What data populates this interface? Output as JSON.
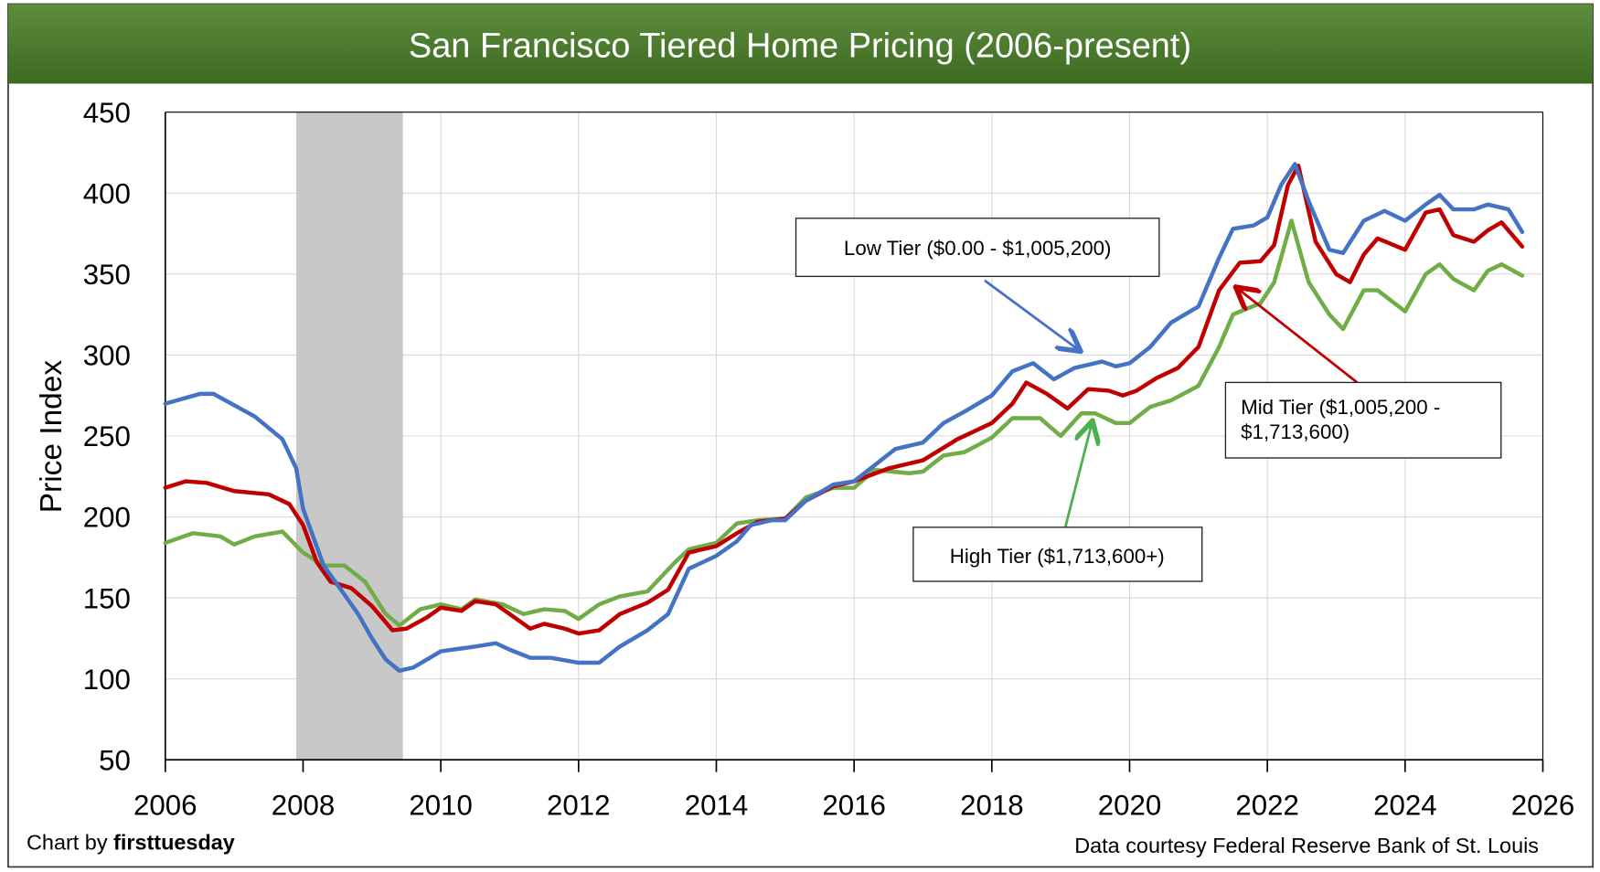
{
  "chart_data": {
    "type": "line",
    "title": "San Francisco Tiered Home Pricing (2006-present)",
    "ylabel": "Price Index",
    "xlabel": "",
    "xlim": [
      2006,
      2026
    ],
    "ylim": [
      50,
      450
    ],
    "x_ticks": [
      "2006",
      "2008",
      "2010",
      "2012",
      "2014",
      "2016",
      "2018",
      "2020",
      "2022",
      "2024",
      "2026"
    ],
    "y_ticks": [
      "450",
      "400",
      "350",
      "300",
      "250",
      "200",
      "150",
      "100",
      "50"
    ],
    "grid": true,
    "recession_shading": [
      2007.9,
      2009.45
    ],
    "series": [
      {
        "name": "Low Tier ($0.00 - $1,005,200)",
        "color": "#4472c4",
        "points": [
          [
            2006.0,
            270
          ],
          [
            2006.5,
            276
          ],
          [
            2006.7,
            276
          ],
          [
            2007.0,
            269
          ],
          [
            2007.3,
            262
          ],
          [
            2007.7,
            248
          ],
          [
            2007.9,
            230
          ],
          [
            2008.0,
            205
          ],
          [
            2008.3,
            170
          ],
          [
            2008.5,
            158
          ],
          [
            2008.8,
            140
          ],
          [
            2009.0,
            125
          ],
          [
            2009.2,
            112
          ],
          [
            2009.4,
            105
          ],
          [
            2009.6,
            107
          ],
          [
            2010.0,
            117
          ],
          [
            2010.5,
            120
          ],
          [
            2010.8,
            122
          ],
          [
            2011.0,
            118
          ],
          [
            2011.3,
            113
          ],
          [
            2011.6,
            113
          ],
          [
            2012.0,
            110
          ],
          [
            2012.3,
            110
          ],
          [
            2012.6,
            120
          ],
          [
            2013.0,
            130
          ],
          [
            2013.3,
            140
          ],
          [
            2013.6,
            168
          ],
          [
            2014.0,
            176
          ],
          [
            2014.3,
            185
          ],
          [
            2014.5,
            195
          ],
          [
            2014.8,
            198
          ],
          [
            2015.0,
            198
          ],
          [
            2015.3,
            210
          ],
          [
            2015.7,
            220
          ],
          [
            2016.0,
            222
          ],
          [
            2016.3,
            232
          ],
          [
            2016.6,
            242
          ],
          [
            2017.0,
            246
          ],
          [
            2017.3,
            258
          ],
          [
            2017.6,
            265
          ],
          [
            2018.0,
            275
          ],
          [
            2018.3,
            290
          ],
          [
            2018.6,
            295
          ],
          [
            2018.9,
            285
          ],
          [
            2019.2,
            292
          ],
          [
            2019.6,
            296
          ],
          [
            2019.8,
            293
          ],
          [
            2020.0,
            295
          ],
          [
            2020.3,
            305
          ],
          [
            2020.6,
            320
          ],
          [
            2021.0,
            330
          ],
          [
            2021.3,
            360
          ],
          [
            2021.5,
            378
          ],
          [
            2021.8,
            380
          ],
          [
            2022.0,
            385
          ],
          [
            2022.2,
            405
          ],
          [
            2022.4,
            418
          ],
          [
            2022.6,
            395
          ],
          [
            2022.9,
            365
          ],
          [
            2023.1,
            363
          ],
          [
            2023.4,
            383
          ],
          [
            2023.7,
            389
          ],
          [
            2024.0,
            383
          ],
          [
            2024.3,
            393
          ],
          [
            2024.5,
            399
          ],
          [
            2024.7,
            390
          ],
          [
            2025.0,
            390
          ],
          [
            2025.2,
            393
          ],
          [
            2025.5,
            390
          ],
          [
            2025.7,
            376
          ]
        ]
      },
      {
        "name": "Mid Tier ($1,005,200 - $1,713,600)",
        "color": "#c00000",
        "points": [
          [
            2006.0,
            218
          ],
          [
            2006.3,
            222
          ],
          [
            2006.6,
            221
          ],
          [
            2007.0,
            216
          ],
          [
            2007.5,
            214
          ],
          [
            2007.8,
            208
          ],
          [
            2008.0,
            195
          ],
          [
            2008.2,
            172
          ],
          [
            2008.4,
            160
          ],
          [
            2008.7,
            156
          ],
          [
            2009.0,
            145
          ],
          [
            2009.3,
            130
          ],
          [
            2009.5,
            131
          ],
          [
            2009.8,
            138
          ],
          [
            2010.0,
            144
          ],
          [
            2010.3,
            142
          ],
          [
            2010.5,
            148
          ],
          [
            2010.8,
            146
          ],
          [
            2011.0,
            140
          ],
          [
            2011.3,
            131
          ],
          [
            2011.5,
            134
          ],
          [
            2011.8,
            131
          ],
          [
            2012.0,
            128
          ],
          [
            2012.3,
            130
          ],
          [
            2012.6,
            140
          ],
          [
            2013.0,
            147
          ],
          [
            2013.3,
            155
          ],
          [
            2013.6,
            178
          ],
          [
            2014.0,
            182
          ],
          [
            2014.3,
            190
          ],
          [
            2014.6,
            197
          ],
          [
            2015.0,
            199
          ],
          [
            2015.3,
            210
          ],
          [
            2015.7,
            219
          ],
          [
            2016.0,
            222
          ],
          [
            2016.5,
            230
          ],
          [
            2017.0,
            235
          ],
          [
            2017.5,
            248
          ],
          [
            2018.0,
            258
          ],
          [
            2018.3,
            270
          ],
          [
            2018.5,
            283
          ],
          [
            2018.8,
            276
          ],
          [
            2019.1,
            267
          ],
          [
            2019.4,
            279
          ],
          [
            2019.7,
            278
          ],
          [
            2019.9,
            275
          ],
          [
            2020.1,
            278
          ],
          [
            2020.4,
            286
          ],
          [
            2020.7,
            292
          ],
          [
            2021.0,
            305
          ],
          [
            2021.3,
            340
          ],
          [
            2021.6,
            357
          ],
          [
            2021.9,
            358
          ],
          [
            2022.1,
            368
          ],
          [
            2022.3,
            405
          ],
          [
            2022.45,
            417
          ],
          [
            2022.7,
            370
          ],
          [
            2023.0,
            350
          ],
          [
            2023.2,
            345
          ],
          [
            2023.4,
            362
          ],
          [
            2023.6,
            372
          ],
          [
            2024.0,
            365
          ],
          [
            2024.3,
            388
          ],
          [
            2024.5,
            390
          ],
          [
            2024.7,
            374
          ],
          [
            2025.0,
            370
          ],
          [
            2025.2,
            377
          ],
          [
            2025.4,
            382
          ],
          [
            2025.7,
            367
          ]
        ]
      },
      {
        "name": "High Tier ($1,713,600+)",
        "color": "#70ad47",
        "points": [
          [
            2006.0,
            184
          ],
          [
            2006.4,
            190
          ],
          [
            2006.8,
            188
          ],
          [
            2007.0,
            183
          ],
          [
            2007.3,
            188
          ],
          [
            2007.7,
            191
          ],
          [
            2008.0,
            178
          ],
          [
            2008.3,
            170
          ],
          [
            2008.6,
            170
          ],
          [
            2008.9,
            160
          ],
          [
            2009.2,
            140
          ],
          [
            2009.4,
            133
          ],
          [
            2009.7,
            143
          ],
          [
            2010.0,
            146
          ],
          [
            2010.3,
            143
          ],
          [
            2010.5,
            149
          ],
          [
            2010.9,
            146
          ],
          [
            2011.2,
            140
          ],
          [
            2011.5,
            143
          ],
          [
            2011.8,
            142
          ],
          [
            2012.0,
            137
          ],
          [
            2012.3,
            146
          ],
          [
            2012.6,
            151
          ],
          [
            2013.0,
            154
          ],
          [
            2013.4,
            172
          ],
          [
            2013.6,
            180
          ],
          [
            2014.0,
            184
          ],
          [
            2014.3,
            196
          ],
          [
            2014.6,
            198
          ],
          [
            2015.0,
            199
          ],
          [
            2015.3,
            212
          ],
          [
            2015.7,
            218
          ],
          [
            2016.0,
            218
          ],
          [
            2016.3,
            229
          ],
          [
            2016.8,
            227
          ],
          [
            2017.0,
            228
          ],
          [
            2017.3,
            238
          ],
          [
            2017.6,
            240
          ],
          [
            2018.0,
            249
          ],
          [
            2018.3,
            261
          ],
          [
            2018.7,
            261
          ],
          [
            2019.0,
            250
          ],
          [
            2019.3,
            264
          ],
          [
            2019.5,
            264
          ],
          [
            2019.8,
            258
          ],
          [
            2020.0,
            258
          ],
          [
            2020.3,
            268
          ],
          [
            2020.6,
            272
          ],
          [
            2021.0,
            281
          ],
          [
            2021.3,
            305
          ],
          [
            2021.5,
            325
          ],
          [
            2021.9,
            332
          ],
          [
            2022.1,
            345
          ],
          [
            2022.35,
            383
          ],
          [
            2022.6,
            345
          ],
          [
            2022.9,
            325
          ],
          [
            2023.1,
            316
          ],
          [
            2023.4,
            340
          ],
          [
            2023.6,
            340
          ],
          [
            2024.0,
            327
          ],
          [
            2024.3,
            350
          ],
          [
            2024.5,
            356
          ],
          [
            2024.7,
            347
          ],
          [
            2025.0,
            340
          ],
          [
            2025.2,
            352
          ],
          [
            2025.4,
            356
          ],
          [
            2025.7,
            349
          ]
        ]
      }
    ],
    "annotations": {
      "low": "Low Tier ($0.00 - $1,005,200)",
      "mid_line1": "Mid Tier ($1,005,200 -",
      "mid_line2": "$1,713,600)",
      "high": "High Tier ($1,713,600+)"
    }
  },
  "footer": {
    "credit_prefix": "Chart by ",
    "credit_brand": "firsttuesday",
    "source": "Data courtesy Federal Reserve Bank of St. Louis"
  },
  "colors": {
    "title_bar": "#4a7a2c",
    "recession": "#c8c8c8"
  }
}
